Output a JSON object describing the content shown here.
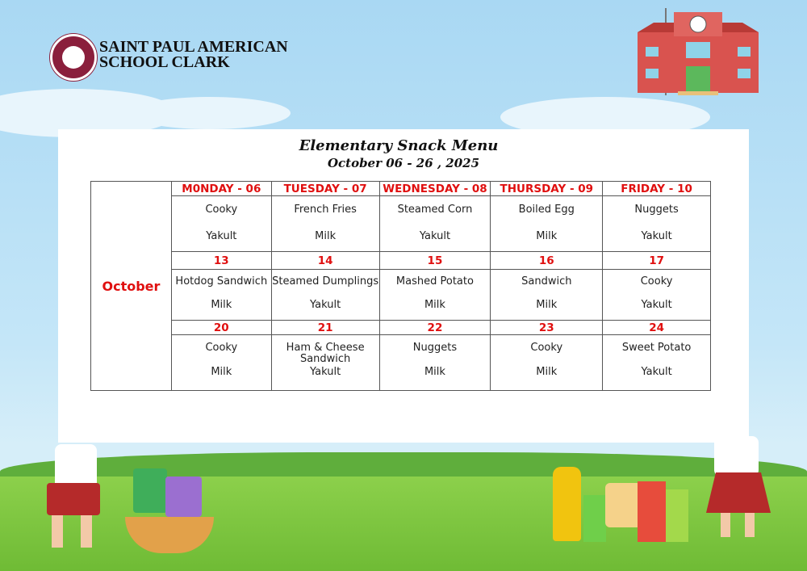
{
  "header": {
    "school_name_line1": "SAINT PAUL AMERICAN",
    "school_name_line2": "SCHOOL CLARK",
    "logo_icon": "school-seal"
  },
  "menu": {
    "title": "Elementary Snack Menu",
    "subtitle": "October 06 - 26 , 2025",
    "month": "October",
    "weeks": [
      {
        "days": [
          "M0NDAY - 06",
          "TUESDAY - 07",
          "WEDNESDAY - 08",
          "THURSDAY - 09",
          "FRIDAY - 10"
        ],
        "snacks": [
          "Cooky",
          "French Fries",
          "Steamed Corn",
          "Boiled Egg",
          "Nuggets"
        ],
        "drinks": [
          "Yakult",
          "Milk",
          "Yakult",
          "Milk",
          "Yakult"
        ]
      },
      {
        "days": [
          "13",
          "14",
          "15",
          "16",
          "17"
        ],
        "snacks": [
          "Hotdog Sandwich",
          "Steamed Dumplings",
          "Mashed Potato",
          "Sandwich",
          "Cooky"
        ],
        "drinks": [
          "Milk",
          "Yakult",
          "Milk",
          "Milk",
          "Yakult"
        ]
      },
      {
        "days": [
          "20",
          "21",
          "22",
          "23",
          "24"
        ],
        "snacks": [
          "Cooky",
          "Ham & Cheese Sandwich",
          "Nuggets",
          "Cooky",
          "Sweet Potato"
        ],
        "drinks": [
          "Milk",
          "Yakult",
          "Milk",
          "Milk",
          "Yakult"
        ]
      }
    ]
  },
  "colors": {
    "accent": "#e01010",
    "sky": "#a9d8f3",
    "grass": "#7cc43f"
  }
}
